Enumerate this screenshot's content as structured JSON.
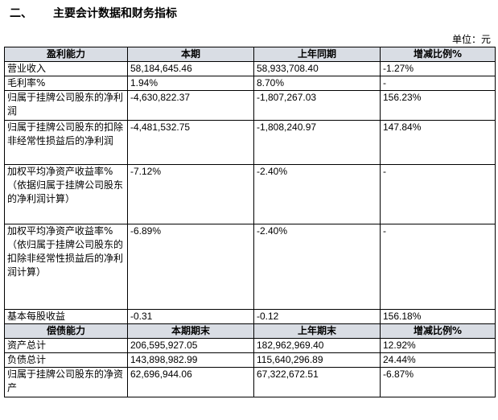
{
  "section": {
    "number": "二、",
    "title": "主要会计数据和财务指标"
  },
  "unit_label": "单位：元",
  "profit": {
    "headers": [
      "盈利能力",
      "本期",
      "上年同期",
      "增减比例%"
    ],
    "rows": [
      {
        "label": "营业收入",
        "current": "58,184,645.46",
        "prior": "58,933,708.40",
        "change": "-1.27%"
      },
      {
        "label": "毛利率%",
        "current": "1.94%",
        "prior": "8.70%",
        "change": "-"
      },
      {
        "label": "归属于挂牌公司股东的净利润",
        "current": "-4,630,822.37",
        "prior": "-1,807,267.03",
        "change": "156.23%"
      },
      {
        "label": "归属于挂牌公司股东的扣除非经常性损益后的净利润",
        "current": "-4,481,532.75",
        "prior": "-1,808,240.97",
        "change": "147.84%"
      },
      {
        "label": "加权平均净资产收益率%（依据归属于挂牌公司股东的净利润计算）",
        "current": "-7.12%",
        "prior": "-2.40%",
        "change": "-"
      },
      {
        "label": "加权平均净资产收益率%（依归属于挂牌公司股东的扣除非经常性损益后的净利润计算）",
        "current": "-6.89%",
        "prior": "-2.40%",
        "change": "-"
      },
      {
        "label": "基本每股收益",
        "current": "-0.31",
        "prior": "-0.12",
        "change": "156.18%"
      }
    ]
  },
  "solvency": {
    "headers": [
      "偿债能力",
      "本期期末",
      "上年期末",
      "增减比例%"
    ],
    "rows": [
      {
        "label": "资产总计",
        "current": "206,595,927.05",
        "prior": "182,962,969.40",
        "change": "12.92%"
      },
      {
        "label": "负债总计",
        "current": "143,898,982.99",
        "prior": "115,640,296.89",
        "change": "24.44%"
      },
      {
        "label": "归属于挂牌公司股东的净资产",
        "current": "62,696,944.06",
        "prior": "67,322,672.51",
        "change": "-6.87%"
      }
    ]
  }
}
